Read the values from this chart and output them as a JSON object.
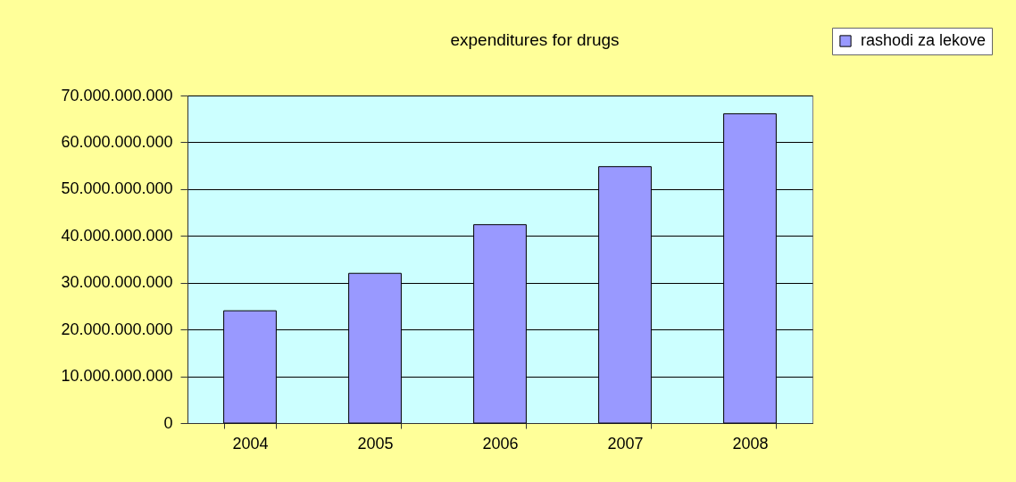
{
  "chart_data": {
    "type": "bar",
    "title": "expenditures for drugs",
    "categories": [
      "2004",
      "2005",
      "2006",
      "2007",
      "2008"
    ],
    "series": [
      {
        "name": "rashodi za lekove",
        "color": "#9999ff",
        "values": [
          24000000000,
          32000000000,
          42400000000,
          54800000000,
          66100000000
        ]
      }
    ],
    "ylim": [
      0,
      70000000000
    ],
    "yticks": [
      0,
      {
        "value": 10000000000,
        "label": "10.000.000.000"
      },
      {
        "value": 20000000000,
        "label": "20.000.000.000"
      },
      {
        "value": 30000000000,
        "label": "30.000.000.000"
      },
      {
        "value": 40000000000,
        "label": "40.000.000.000"
      },
      {
        "value": 50000000000,
        "label": "50.000.000.000"
      },
      {
        "value": 60000000000,
        "label": "60.000.000.000"
      },
      {
        "value": 70000000000,
        "label": "70.000.000.000"
      }
    ],
    "grid": "y",
    "legend": "top right"
  }
}
